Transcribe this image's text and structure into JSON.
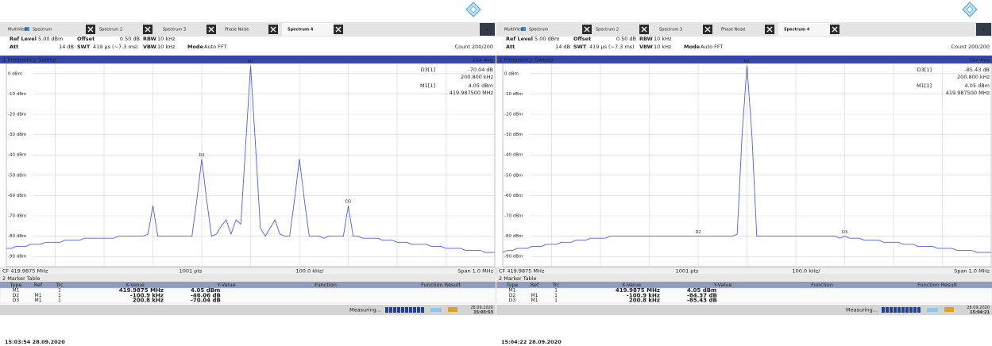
{
  "chart_data": [
    {
      "type": "line",
      "color": "#4b5fe0",
      "ylim": [
        -95,
        5
      ],
      "yticks": [
        {
          "value": 0,
          "label": "0 dBm"
        },
        {
          "value": -10,
          "label": "-10 dBm"
        },
        {
          "value": -20,
          "label": "-20 dBm"
        },
        {
          "value": -30,
          "label": "-30 dBm"
        },
        {
          "value": -40,
          "label": "-40 dBm"
        },
        {
          "value": -50,
          "label": "-50 dBm"
        },
        {
          "value": -60,
          "label": "-60 dBm"
        },
        {
          "value": -70,
          "label": "-70 dBm"
        },
        {
          "value": -80,
          "label": "-80 dBm"
        },
        {
          "value": -90,
          "label": "-90 dBm"
        }
      ],
      "grid": true,
      "values": [
        -86,
        -86,
        -85,
        -85,
        -85,
        -84,
        -84,
        -84,
        -83,
        -83,
        -83,
        -83,
        -82,
        -82,
        -82,
        -82,
        -81,
        -81,
        -81,
        -81,
        -81,
        -81,
        -81,
        -80,
        -80,
        -80,
        -80,
        -80,
        -80,
        -79,
        -65,
        -80,
        -80,
        -80,
        -80,
        -80,
        -80,
        -80,
        -80,
        -62,
        -42,
        -62,
        -80,
        -79,
        -75,
        -72,
        -79,
        -72,
        -74,
        -35,
        4,
        -35,
        -76,
        -80,
        -76,
        -72,
        -79,
        -80,
        -80,
        -62,
        -42,
        -62,
        -80,
        -80,
        -80,
        -81,
        -80,
        -80,
        -80,
        -80,
        -65,
        -80,
        -80,
        -81,
        -81,
        -81,
        -81,
        -82,
        -82,
        -82,
        -83,
        -83,
        -83,
        -84,
        -84,
        -84,
        -84,
        -85,
        -85,
        -85,
        -86,
        -86,
        -86,
        -86,
        -87,
        -87,
        -87,
        -87,
        -88,
        -88,
        -88
      ]
    },
    {
      "type": "line",
      "color": "#4b5fe0",
      "ylim": [
        -95,
        5
      ],
      "yticks": [
        {
          "value": 0,
          "label": "0 dBm"
        },
        {
          "value": -10,
          "label": "-10 dBm"
        },
        {
          "value": -20,
          "label": "-20 dBm"
        },
        {
          "value": -30,
          "label": "-30 dBm"
        },
        {
          "value": -40,
          "label": "-40 dBm"
        },
        {
          "value": -50,
          "label": "-50 dBm"
        },
        {
          "value": -60,
          "label": "-60 dBm"
        },
        {
          "value": -70,
          "label": "-70 dBm"
        },
        {
          "value": -80,
          "label": "-80 dBm"
        },
        {
          "value": -90,
          "label": "-90 dBm"
        }
      ],
      "grid": true,
      "values": [
        -88,
        -87,
        -87,
        -86,
        -86,
        -86,
        -85,
        -85,
        -85,
        -84,
        -84,
        -84,
        -83,
        -83,
        -83,
        -82,
        -82,
        -82,
        -81,
        -81,
        -81,
        -81,
        -80,
        -80,
        -80,
        -80,
        -80,
        -80,
        -80,
        -80,
        -80,
        -80,
        -80,
        -80,
        -80,
        -80,
        -80,
        -80,
        -80,
        -80,
        -80,
        -80,
        -80,
        -80,
        -80,
        -80,
        -80,
        -80,
        -79,
        -30,
        4,
        -30,
        -80,
        -80,
        -80,
        -80,
        -80,
        -80,
        -80,
        -80,
        -80,
        -80,
        -80,
        -80,
        -80,
        -80,
        -80,
        -80,
        -80,
        -81,
        -80,
        -81,
        -81,
        -81,
        -82,
        -82,
        -82,
        -82,
        -83,
        -83,
        -83,
        -83,
        -84,
        -84,
        -84,
        -85,
        -85,
        -85,
        -85,
        -86,
        -86,
        -86,
        -86,
        -87,
        -87,
        -87,
        -87,
        -88,
        -88,
        -88,
        -88
      ]
    }
  ],
  "panels": [
    {
      "tabs": [
        "MultiView",
        "Spectrum",
        "Spectrum 2",
        "Spectrum 3",
        "Phase Noise",
        "Spectrum 4"
      ],
      "settings": {
        "ref_level_label": "Ref Level",
        "ref_level": "5.00 dBm",
        "offset_label": "Offset",
        "offset": "0.50 dB",
        "rbw_label": "RBW",
        "rbw": "10 kHz",
        "att_label": "Att",
        "att": "14 dB",
        "swt_label": "SWT",
        "swt": "419 µs (~7.3 ms)",
        "vbw_label": "VBW",
        "vbw": "10 kHz",
        "mode_label": "Mode",
        "mode": "Auto FFT",
        "count": "Count 200/200"
      },
      "window_title": "1 Frequency Sweep",
      "avg": "1Sa Avg",
      "readout": [
        {
          "name": "D3[1]",
          "y": "-70.04 dB",
          "x": "200.800 kHz"
        },
        {
          "name": "M1[1]",
          "y": "4.05 dBm",
          "x": "419.987500 MHz"
        }
      ],
      "footer": {
        "cf": "CF 419.9875 MHz",
        "pts": "1001 pts",
        "div": "100.0 kHz/",
        "span": "Span 1.0 MHz"
      },
      "marker_table": {
        "title": "2 Marker Table",
        "columns": [
          "Type",
          "Ref",
          "Trc",
          "X-Value",
          "Y-Value",
          "Function",
          "Function Result"
        ],
        "rows": [
          {
            "type": "M1",
            "trc": "1",
            "x": "419.9875 MHz",
            "y": "4.05 dBm"
          },
          {
            "type": "D2",
            "ref": "M1",
            "trc": "1",
            "x": "-100.9 kHz",
            "y": "-46.06 dB"
          },
          {
            "type": "D3",
            "ref": "M1",
            "trc": "1",
            "x": "200.8 kHz",
            "y": "-70.04 dB"
          }
        ]
      },
      "status": {
        "state": "Measuring...",
        "date": "28.09.2020",
        "time": "15:03:53"
      },
      "caption": "15:03:54 28.09.2020"
    },
    {
      "tabs": [
        "MultiView",
        "Spectrum",
        "Spectrum 2",
        "Spectrum 3",
        "Phase Noise",
        "Spectrum 4"
      ],
      "settings": {
        "ref_level_label": "Ref Level",
        "ref_level": "5.00 dBm",
        "offset_label": "Offset",
        "offset": "0.50 dB",
        "rbw_label": "RBW",
        "rbw": "10 kHz",
        "att_label": "Att",
        "att": "14 dB",
        "swt_label": "SWT",
        "swt": "419 µs (~7.3 ms)",
        "vbw_label": "VBW",
        "vbw": "10 kHz",
        "mode_label": "Mode",
        "mode": "Auto FFT",
        "count": "Count 200/200"
      },
      "window_title": "1 Frequency Sweep",
      "avg": "1Sa Avg",
      "readout": [
        {
          "name": "D3[1]",
          "y": "-85.43 dB",
          "x": "200.800 kHz"
        },
        {
          "name": "M1[1]",
          "y": "4.05 dBm",
          "x": "419.987500 MHz"
        }
      ],
      "footer": {
        "cf": "CF 419.9875 MHz",
        "pts": "1001 pts",
        "div": "100.0 kHz/",
        "span": "Span 1.0 MHz"
      },
      "marker_table": {
        "title": "2 Marker Table",
        "columns": [
          "Type",
          "Ref",
          "Trc",
          "X-Value",
          "Y-Value",
          "Function",
          "Function Result"
        ],
        "rows": [
          {
            "type": "M1",
            "trc": "1",
            "x": "419.9875 MHz",
            "y": "4.05 dBm"
          },
          {
            "type": "D2",
            "ref": "M1",
            "trc": "1",
            "x": "-100.9 kHz",
            "y": "-84.37 dB"
          },
          {
            "type": "D3",
            "ref": "M1",
            "trc": "1",
            "x": "200.8 kHz",
            "y": "-85.43 dB"
          }
        ]
      },
      "status": {
        "state": "Measuring...",
        "date": "28.09.2020",
        "time": "15:04:21"
      },
      "caption": "15:04:22 28.09.2020"
    }
  ]
}
